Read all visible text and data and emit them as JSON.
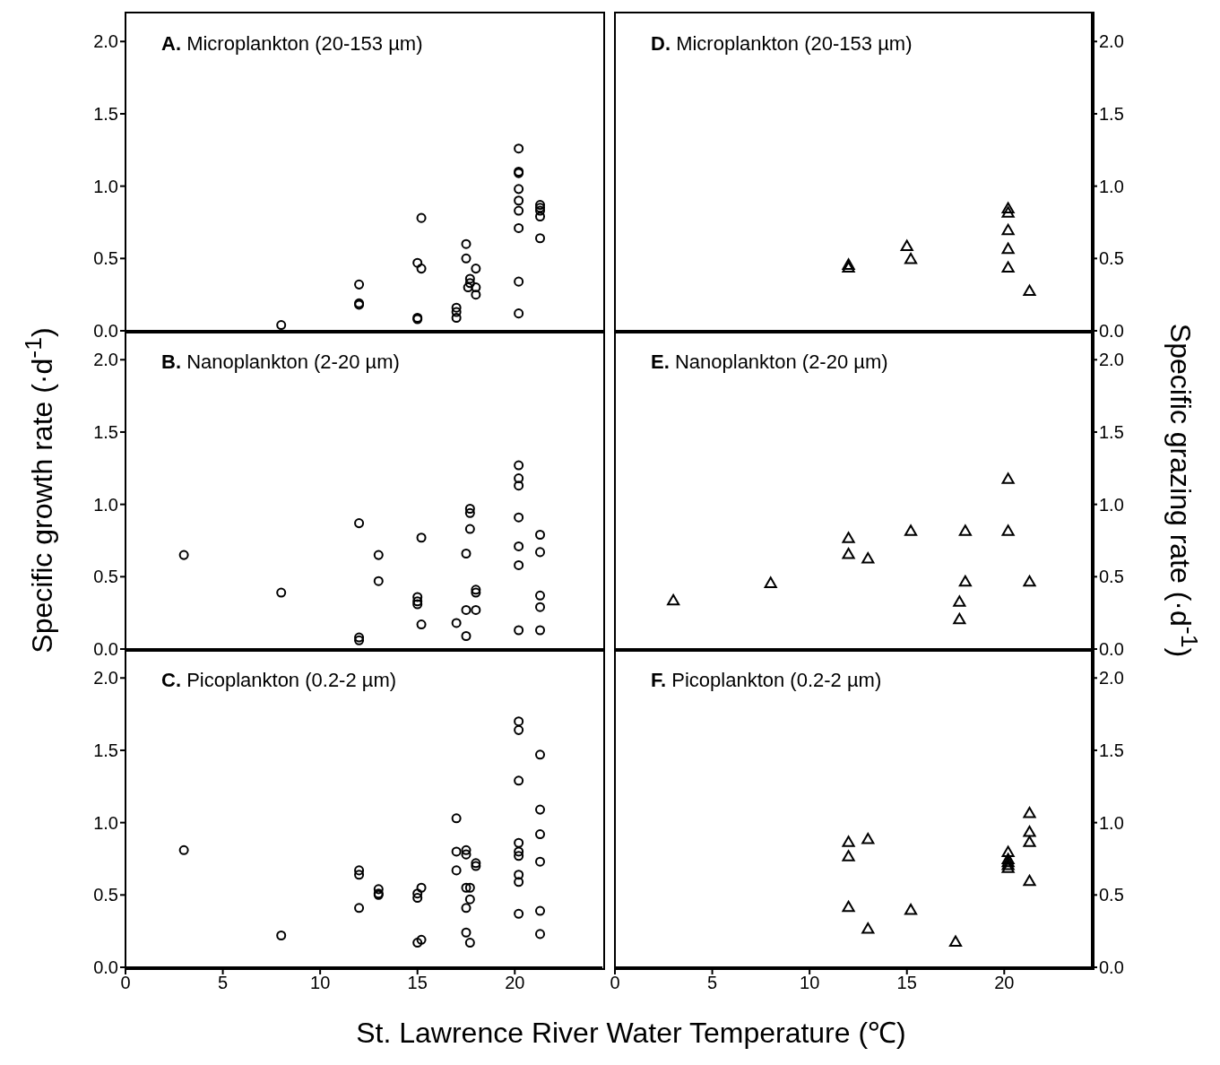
{
  "chart_data": [
    {
      "type": "scatter",
      "title": "A. Microplankton (20-153 µm)",
      "marker": "circle",
      "tick_labels": "y",
      "xlim": [
        0,
        24.5
      ],
      "xticks": [
        0,
        5,
        10,
        15,
        20
      ],
      "ylim": [
        0,
        2.2
      ],
      "yticks": [
        {
          "value": 0,
          "label": "0.0"
        },
        {
          "value": 0.5,
          "label": "0.5"
        },
        {
          "value": 1,
          "label": "1.0"
        },
        {
          "value": 1.5,
          "label": "1.5"
        },
        {
          "value": 2,
          "label": "2.0"
        }
      ],
      "x": [
        8,
        12,
        12,
        12,
        15,
        15.2,
        15.2,
        15,
        15,
        17,
        17,
        17,
        17.5,
        17.5,
        17.7,
        17.7,
        17.6,
        18,
        18,
        18,
        20.2,
        20.2,
        20.2,
        20.2,
        20.2,
        20.2,
        20.2,
        20.2,
        20.2,
        21.3,
        21.3,
        21.3,
        21.3,
        21.3
      ],
      "series": [
        {
          "color": "#000000",
          "values": [
            0.04,
            0.32,
            0.19,
            0.18,
            0.47,
            0.43,
            0.78,
            0.09,
            0.08,
            0.16,
            0.13,
            0.09,
            0.6,
            0.5,
            0.36,
            0.33,
            0.3,
            0.43,
            0.3,
            0.25,
            1.26,
            1.1,
            1.09,
            0.98,
            0.9,
            0.83,
            0.71,
            0.34,
            0.12,
            0.87,
            0.85,
            0.83,
            0.79,
            0.64
          ]
        }
      ]
    },
    {
      "type": "scatter",
      "title": "B. Nanoplankton (2-20 µm)",
      "ylabel": "Specific growth rate (·d$^{-1}$)",
      "marker": "circle",
      "tick_labels": "y",
      "xlim": [
        0,
        24.5
      ],
      "xticks": [
        0,
        5,
        10,
        15,
        20
      ],
      "ylim": [
        0,
        2.2
      ],
      "yticks": [
        {
          "value": 0,
          "label": "0.0"
        },
        {
          "value": 0.5,
          "label": "0.5"
        },
        {
          "value": 1,
          "label": "1.0"
        },
        {
          "value": 1.5,
          "label": "1.5"
        },
        {
          "value": 2,
          "label": "2.0"
        }
      ],
      "x": [
        3,
        8,
        12,
        12,
        12,
        13,
        13,
        15,
        15,
        15,
        15.2,
        15.2,
        17,
        17.5,
        17.5,
        17.5,
        17.7,
        17.7,
        17.7,
        18,
        18,
        18,
        20.2,
        20.2,
        20.2,
        20.2,
        20.2,
        20.2,
        20.2,
        21.3,
        21.3,
        21.3,
        21.3,
        21.3
      ],
      "series": [
        {
          "color": "#000000",
          "values": [
            0.65,
            0.39,
            0.87,
            0.08,
            0.06,
            0.65,
            0.47,
            0.36,
            0.33,
            0.31,
            0.77,
            0.17,
            0.18,
            0.66,
            0.27,
            0.09,
            0.97,
            0.94,
            0.83,
            0.41,
            0.39,
            0.27,
            1.27,
            1.18,
            1.13,
            0.91,
            0.71,
            0.58,
            0.13,
            0.79,
            0.67,
            0.37,
            0.29,
            0.13
          ]
        }
      ]
    },
    {
      "type": "scatter",
      "title": "C. Picoplankton (0.2-2 µm)",
      "xlabel": "St. Lawrence River Water Temperature (℃)",
      "marker": "circle",
      "xlim": [
        0,
        24.5
      ],
      "xticks": [
        0,
        5,
        10,
        15,
        20
      ],
      "ylim": [
        0,
        2.2
      ],
      "yticks": [
        {
          "value": 0,
          "label": "0.0"
        },
        {
          "value": 0.5,
          "label": "0.5"
        },
        {
          "value": 1,
          "label": "1.0"
        },
        {
          "value": 1.5,
          "label": "1.5"
        },
        {
          "value": 2,
          "label": "2.0"
        }
      ],
      "x": [
        3,
        8,
        12,
        12,
        12,
        13,
        13,
        13,
        15,
        15,
        15.2,
        15,
        15.2,
        17,
        17,
        17,
        17.5,
        17.5,
        17.5,
        17.7,
        17.7,
        17.5,
        17.5,
        17.7,
        18,
        18,
        20.2,
        20.2,
        20.2,
        20.2,
        20.2,
        20.2,
        20.2,
        20.2,
        20.2,
        21.3,
        21.3,
        21.3,
        21.3,
        21.3,
        21.3
      ],
      "series": [
        {
          "color": "#000000",
          "values": [
            0.81,
            0.22,
            0.67,
            0.64,
            0.41,
            0.54,
            0.51,
            0.5,
            0.51,
            0.48,
            0.55,
            0.17,
            0.19,
            1.03,
            0.8,
            0.67,
            0.81,
            0.78,
            0.55,
            0.55,
            0.47,
            0.41,
            0.24,
            0.17,
            0.72,
            0.7,
            1.7,
            1.64,
            1.29,
            0.86,
            0.8,
            0.77,
            0.64,
            0.59,
            0.37,
            1.47,
            1.09,
            0.92,
            0.73,
            0.39,
            0.23
          ]
        }
      ]
    },
    {
      "type": "scatter",
      "title": "D. Microplankton (20-153 µm)",
      "marker": "triangle",
      "tick_labels": "y",
      "xlim": [
        0,
        24.5
      ],
      "xticks": [
        0,
        5,
        10,
        15,
        20
      ],
      "y2lim": [
        0,
        2.2
      ],
      "y2ticks": [
        {
          "value": 0,
          "label": "0.0"
        },
        {
          "value": 0.5,
          "label": "0.5"
        },
        {
          "value": 1,
          "label": "1.0"
        },
        {
          "value": 1.5,
          "label": "1.5"
        },
        {
          "value": 2,
          "label": "2.0"
        }
      ],
      "x": [
        12,
        12,
        15,
        15.2,
        20.2,
        20.2,
        20.2,
        20.2,
        20.2,
        21.3
      ],
      "series": [
        {
          "color": "#000000",
          "axis": "y2",
          "values": [
            0.45,
            0.43,
            0.58,
            0.49,
            0.84,
            0.81,
            0.69,
            0.56,
            0.43,
            0.27
          ]
        }
      ]
    },
    {
      "type": "scatter",
      "title": "E. Nanoplankton (2-20 µm)",
      "y2label": "Specific grazing rate (·d$^{-1}$)",
      "marker": "triangle",
      "tick_labels": "y",
      "xlim": [
        0,
        24.5
      ],
      "xticks": [
        0,
        5,
        10,
        15,
        20
      ],
      "y2lim": [
        0,
        2.2
      ],
      "y2ticks": [
        {
          "value": 0,
          "label": "0.0"
        },
        {
          "value": 0.5,
          "label": "0.5"
        },
        {
          "value": 1,
          "label": "1.0"
        },
        {
          "value": 1.5,
          "label": "1.5"
        },
        {
          "value": 2,
          "label": "2.0"
        }
      ],
      "x": [
        3,
        8,
        12,
        12,
        13,
        15.2,
        17.7,
        17.7,
        18,
        18,
        20.2,
        20.2,
        21.3
      ],
      "series": [
        {
          "color": "#000000",
          "axis": "y2",
          "values": [
            0.33,
            0.45,
            0.76,
            0.65,
            0.62,
            0.81,
            0.32,
            0.2,
            0.81,
            0.46,
            1.17,
            0.81,
            0.46
          ]
        }
      ]
    },
    {
      "type": "scatter",
      "title": "F. Picoplankton (0.2-2 µm)",
      "marker": "triangle",
      "xlim": [
        0,
        24.5
      ],
      "xticks": [
        0,
        5,
        10,
        15,
        20
      ],
      "y2lim": [
        0,
        2.2
      ],
      "y2ticks": [
        {
          "value": 0,
          "label": "0.0"
        },
        {
          "value": 0.5,
          "label": "0.5"
        },
        {
          "value": 1,
          "label": "1.0"
        },
        {
          "value": 1.5,
          "label": "1.5"
        },
        {
          "value": 2,
          "label": "2.0"
        }
      ],
      "x": [
        12,
        12,
        12,
        13,
        13,
        15.2,
        17.5,
        20.2,
        20.2,
        20.2,
        20.2,
        20.2,
        21.3,
        21.3,
        21.3,
        21.3
      ],
      "series": [
        {
          "color": "#000000",
          "axis": "y2",
          "values": [
            0.86,
            0.76,
            0.41,
            0.88,
            0.26,
            0.39,
            0.17,
            0.79,
            0.74,
            0.72,
            0.7,
            0.68,
            1.06,
            0.93,
            0.86,
            0.59
          ]
        }
      ]
    }
  ]
}
